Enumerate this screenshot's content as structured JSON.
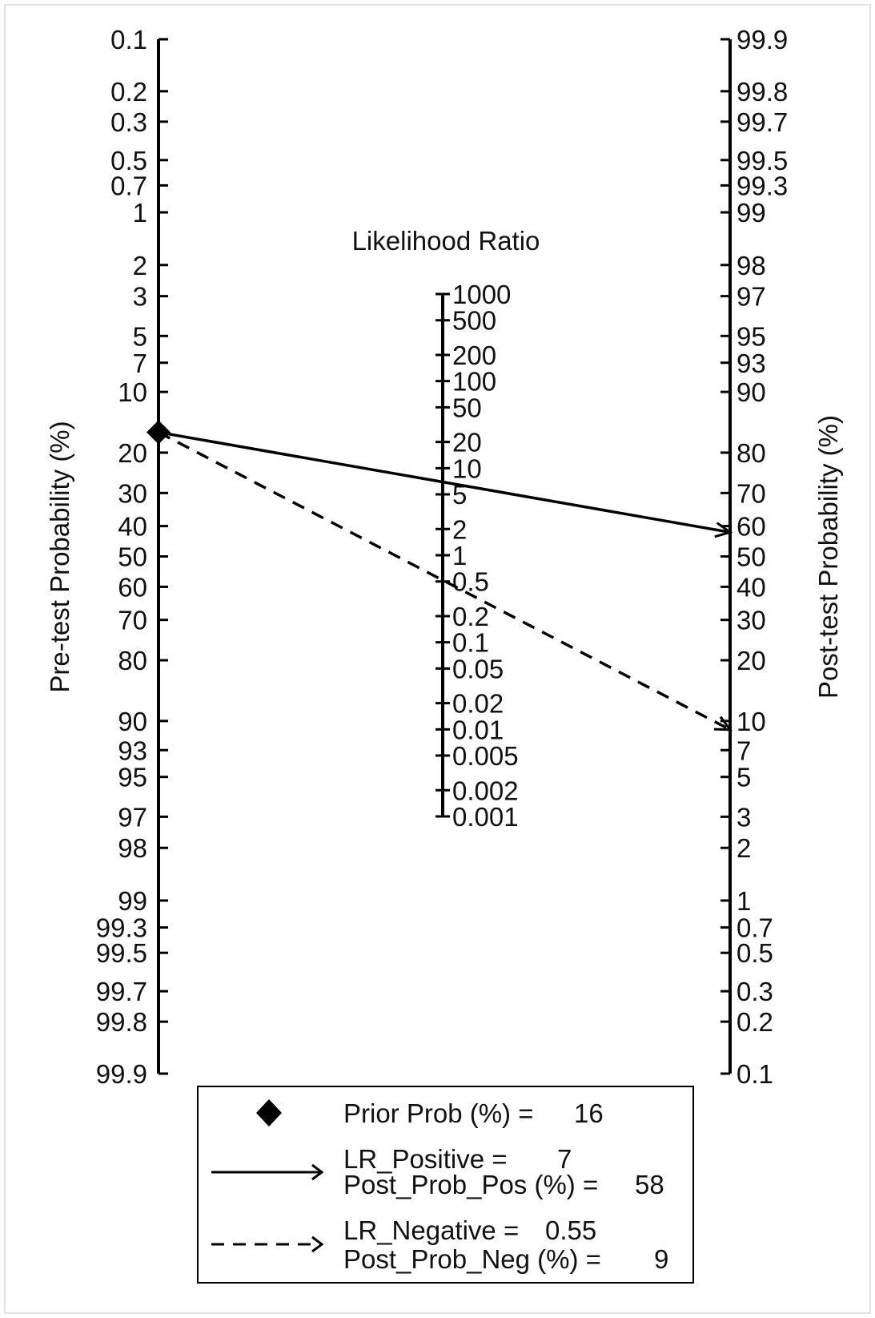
{
  "chart_data": {
    "type": "line",
    "title": "",
    "lr_axis_title": "Likelihood Ratio",
    "pretest_axis_label": "Pre-test Probability (%)",
    "posttest_axis_label": "Post-test Probability (%)",
    "pretest_ticks": [
      "0.1",
      "0.2",
      "0.3",
      "0.5",
      "0.7",
      "1",
      "2",
      "3",
      "5",
      "7",
      "10",
      "20",
      "30",
      "40",
      "50",
      "60",
      "70",
      "80",
      "90",
      "93",
      "95",
      "97",
      "98",
      "99",
      "99.3",
      "99.5",
      "99.7",
      "99.8",
      "99.9"
    ],
    "posttest_ticks": [
      "99.9",
      "99.8",
      "99.7",
      "99.5",
      "99.3",
      "99",
      "98",
      "97",
      "95",
      "93",
      "90",
      "80",
      "70",
      "60",
      "50",
      "40",
      "30",
      "20",
      "10",
      "7",
      "5",
      "3",
      "2",
      "1",
      "0.7",
      "0.5",
      "0.3",
      "0.2",
      "0.1"
    ],
    "lr_ticks": [
      "1000",
      "500",
      "200",
      "100",
      "50",
      "20",
      "10",
      "5",
      "2",
      "1",
      "0.5",
      "0.2",
      "0.1",
      "0.05",
      "0.02",
      "0.01",
      "0.005",
      "0.002",
      "0.001"
    ],
    "prior_prob": 16,
    "lr_positive": 7,
    "post_prob_pos": 58,
    "lr_negative": 0.55,
    "post_prob_neg": 9,
    "legend": [
      {
        "marker": "diamond",
        "label": "Prior Prob (%) =",
        "value": "16"
      },
      {
        "marker": "solid-arrow",
        "label": "LR_Positive =",
        "value": "7",
        "label2": "Post_Prob_Pos (%) =",
        "value2": "58"
      },
      {
        "marker": "dashed-arrow",
        "label": "LR_Negative =",
        "value": "0.55",
        "label2": "Post_Prob_Neg (%) =",
        "value2": "9"
      }
    ]
  }
}
